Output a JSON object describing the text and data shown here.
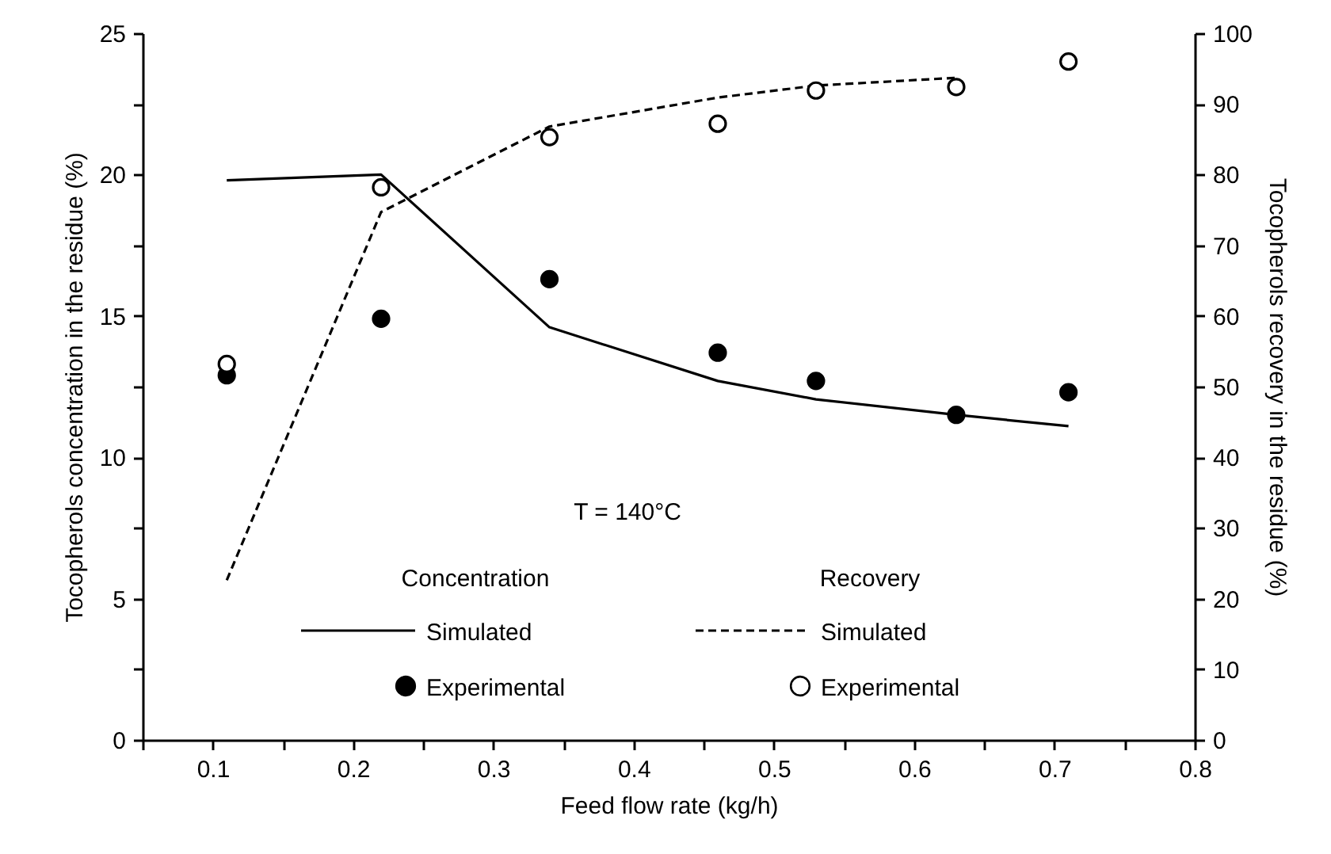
{
  "chart_data": {
    "type": "line",
    "xlabel": "Feed flow rate (kg/h)",
    "ylabel": "Tocopherols concentration in the residue (%)",
    "y2label": "Tocopherols recovery in the residue (%)",
    "annotations": [
      "T = 140°C",
      "Concentration",
      "Recovery"
    ],
    "x": [
      0.11,
      0.22,
      0.34,
      0.46,
      0.53,
      0.63,
      0.71
    ],
    "series": [
      {
        "name": "Simulated",
        "color": "#000000",
        "line_style": "solid",
        "values": [
          19.8,
          20.0,
          14.6,
          12.7,
          12.05,
          11.5,
          11.1
        ]
      },
      {
        "name": "Experimental",
        "type": "scatter",
        "color": "#000000",
        "marker": "circle",
        "values": [
          12.9,
          14.9,
          16.3,
          13.7,
          12.7,
          11.5,
          12.3
        ]
      },
      {
        "name": "Simulated",
        "axis": "y2",
        "color": "#000000",
        "line_style": "dashed",
        "x": [
          0.11,
          0.22,
          0.34,
          0.46,
          0.53,
          0.63
        ],
        "values": [
          22.6,
          74.7,
          86.8,
          90.9,
          92.6,
          93.7
        ]
      },
      {
        "name": "Experimental",
        "type": "scatter",
        "axis": "y2",
        "color": "#000000",
        "marker": "circle",
        "values": [
          53.2,
          78.2,
          85.3,
          87.2,
          91.9,
          92.4,
          96.0
        ]
      }
    ],
    "xlim": [
      0.05,
      0.8
    ],
    "xticks": [
      {
        "value": 0.05,
        "label": null
      },
      0.1,
      {
        "value": 0.15,
        "label": null
      },
      0.2,
      {
        "value": 0.25,
        "label": null
      },
      0.3,
      {
        "value": 0.35,
        "label": null
      },
      0.4,
      {
        "value": 0.45,
        "label": null
      },
      0.5,
      {
        "value": 0.55,
        "label": null
      },
      0.6,
      {
        "value": 0.65,
        "label": null
      },
      0.7,
      {
        "value": 0.75,
        "label": null
      },
      0.8
    ],
    "ylim": [
      0,
      25
    ],
    "yticks": [
      0,
      {
        "value": 2.5,
        "label": null
      },
      5,
      {
        "value": 7.5,
        "label": null
      },
      10,
      {
        "value": 12.5,
        "label": null
      },
      15,
      {
        "value": 17.5,
        "label": null
      },
      20,
      {
        "value": 22.5,
        "label": null
      },
      25
    ],
    "y2lim": [
      0,
      100
    ],
    "y2ticks": [
      0,
      10,
      20,
      30,
      40,
      50,
      60,
      70,
      80,
      90,
      100
    ],
    "grid": false,
    "legend": "bottom"
  }
}
